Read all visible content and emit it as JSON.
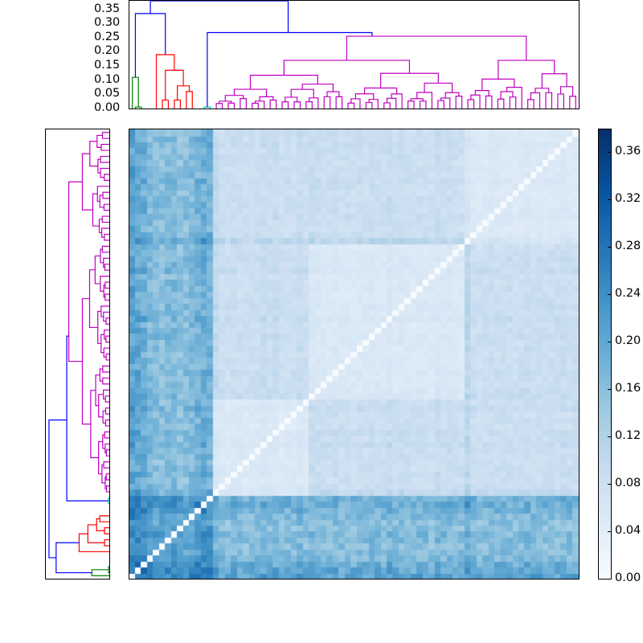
{
  "chart_data": {
    "type": "heatmap",
    "title": "",
    "description": "Clustered distance matrix (clustermap) with hierarchical dendrograms on top and left, Blues colormap, colorbar 0.00-0.38",
    "n_leaves": 75,
    "colormap": "Blues",
    "vmin": 0.0,
    "vmax": 0.38,
    "colorbar": {
      "ticks": [
        0.0,
        0.04,
        0.08,
        0.12,
        0.16,
        0.2,
        0.24,
        0.28,
        0.32,
        0.36
      ],
      "tick_labels": [
        "0.00",
        "0.04",
        "0.08",
        "0.12",
        "0.16",
        "0.20",
        "0.24",
        "0.28",
        "0.32",
        "0.36"
      ]
    },
    "top_dendrogram": {
      "ylim": [
        0.0,
        0.38
      ],
      "yticks": [
        0.0,
        0.05,
        0.1,
        0.15,
        0.2,
        0.25,
        0.3,
        0.35
      ],
      "ytick_labels": [
        "0.00",
        "0.05",
        "0.10",
        "0.15",
        "0.20",
        "0.25",
        "0.30",
        "0.35"
      ],
      "cluster_colors": {
        "green": "#008000",
        "red": "#ff0000",
        "cyan": "#00bfbf",
        "magenta": "#bf00bf",
        "above_threshold": "#0000ff"
      },
      "clusters": [
        {
          "color": "green",
          "leaves": [
            0,
            2
          ],
          "height": 0.11
        },
        {
          "color": "red",
          "leaves": [
            3,
            11
          ],
          "height": 0.19
        },
        {
          "color": "cyan",
          "leaves": [
            12,
            13
          ],
          "height": 0.005
        },
        {
          "color": "magenta",
          "leaves": [
            14,
            74
          ],
          "height": 0.255
        }
      ],
      "links": [
        {
          "x": [
            0.5,
            1.5
          ],
          "y": [
            0.0,
            0.0
          ],
          "top": 0.005,
          "color": "green"
        },
        {
          "x": [
            0,
            1.0
          ],
          "y": [
            0.0,
            0.005
          ],
          "top": 0.11,
          "color": "green"
        },
        {
          "x": [
            5,
            6
          ],
          "y": [
            0,
            0
          ],
          "top": 0.03,
          "color": "red"
        },
        {
          "x": [
            7,
            8
          ],
          "y": [
            0,
            0
          ],
          "top": 0.03,
          "color": "red"
        },
        {
          "x": [
            9,
            10
          ],
          "y": [
            0,
            0
          ],
          "top": 0.06,
          "color": "red"
        },
        {
          "x": [
            7.5,
            9.5
          ],
          "y": [
            0.03,
            0.06
          ],
          "top": 0.08,
          "color": "red"
        },
        {
          "x": [
            5.5,
            8.5
          ],
          "y": [
            0.03,
            0.08
          ],
          "top": 0.135,
          "color": "red"
        },
        {
          "x": [
            4,
            7.0
          ],
          "y": [
            0.0,
            0.135
          ],
          "top": 0.19,
          "color": "red"
        },
        {
          "x": [
            12,
            13
          ],
          "y": [
            0,
            0
          ],
          "top": 0.005,
          "color": "cyan"
        },
        {
          "x": [
            0.5,
            5.5
          ],
          "y": [
            0.11,
            0.19
          ],
          "top": 0.335,
          "color": "above_threshold"
        },
        {
          "x": [
            12.5,
            40
          ],
          "y": [
            0.005,
            0.255
          ],
          "top": 0.268,
          "color": "above_threshold"
        },
        {
          "x": [
            3,
            26
          ],
          "y": [
            0.335,
            0.268
          ],
          "top": 0.38,
          "color": "above_threshold"
        }
      ]
    },
    "left_dendrogram": {
      "orientation": "left",
      "mirrors": "top_dendrogram"
    },
    "row_strength": [
      0.3,
      0.28,
      0.26,
      0.22,
      0.21,
      0.2,
      0.21,
      0.22,
      0.19,
      0.2,
      0.22,
      0.24,
      0.26,
      0.25,
      0.16,
      0.12,
      0.11,
      0.13,
      0.12,
      0.11,
      0.12,
      0.12,
      0.14,
      0.12,
      0.13,
      0.11,
      0.12,
      0.11,
      0.14,
      0.12,
      0.14,
      0.13,
      0.12,
      0.12,
      0.13,
      0.12,
      0.12,
      0.11,
      0.12,
      0.12,
      0.13,
      0.12,
      0.12,
      0.14,
      0.12,
      0.13,
      0.12,
      0.11,
      0.12,
      0.12,
      0.11,
      0.14,
      0.12,
      0.13,
      0.12,
      0.11,
      0.18,
      0.12,
      0.11,
      0.12,
      0.13,
      0.12,
      0.12,
      0.12,
      0.11,
      0.12,
      0.13,
      0.12,
      0.12,
      0.11,
      0.12,
      0.12,
      0.13,
      0.12,
      0.12
    ],
    "highlight_indices": [
      0,
      1,
      2,
      11,
      12,
      13,
      30,
      53,
      56
    ],
    "notes": "Matrix is symmetric with zero diagonal; index order follows dendrogram leaves (left-to-right on top, bottom-to-top on left)."
  },
  "axes": {
    "top_dendrogram_yticks": [
      "0.00",
      "0.05",
      "0.10",
      "0.15",
      "0.20",
      "0.25",
      "0.30",
      "0.35"
    ],
    "colorbar_ticks": [
      "0.00",
      "0.04",
      "0.08",
      "0.12",
      "0.16",
      "0.20",
      "0.24",
      "0.28",
      "0.32",
      "0.36"
    ]
  }
}
